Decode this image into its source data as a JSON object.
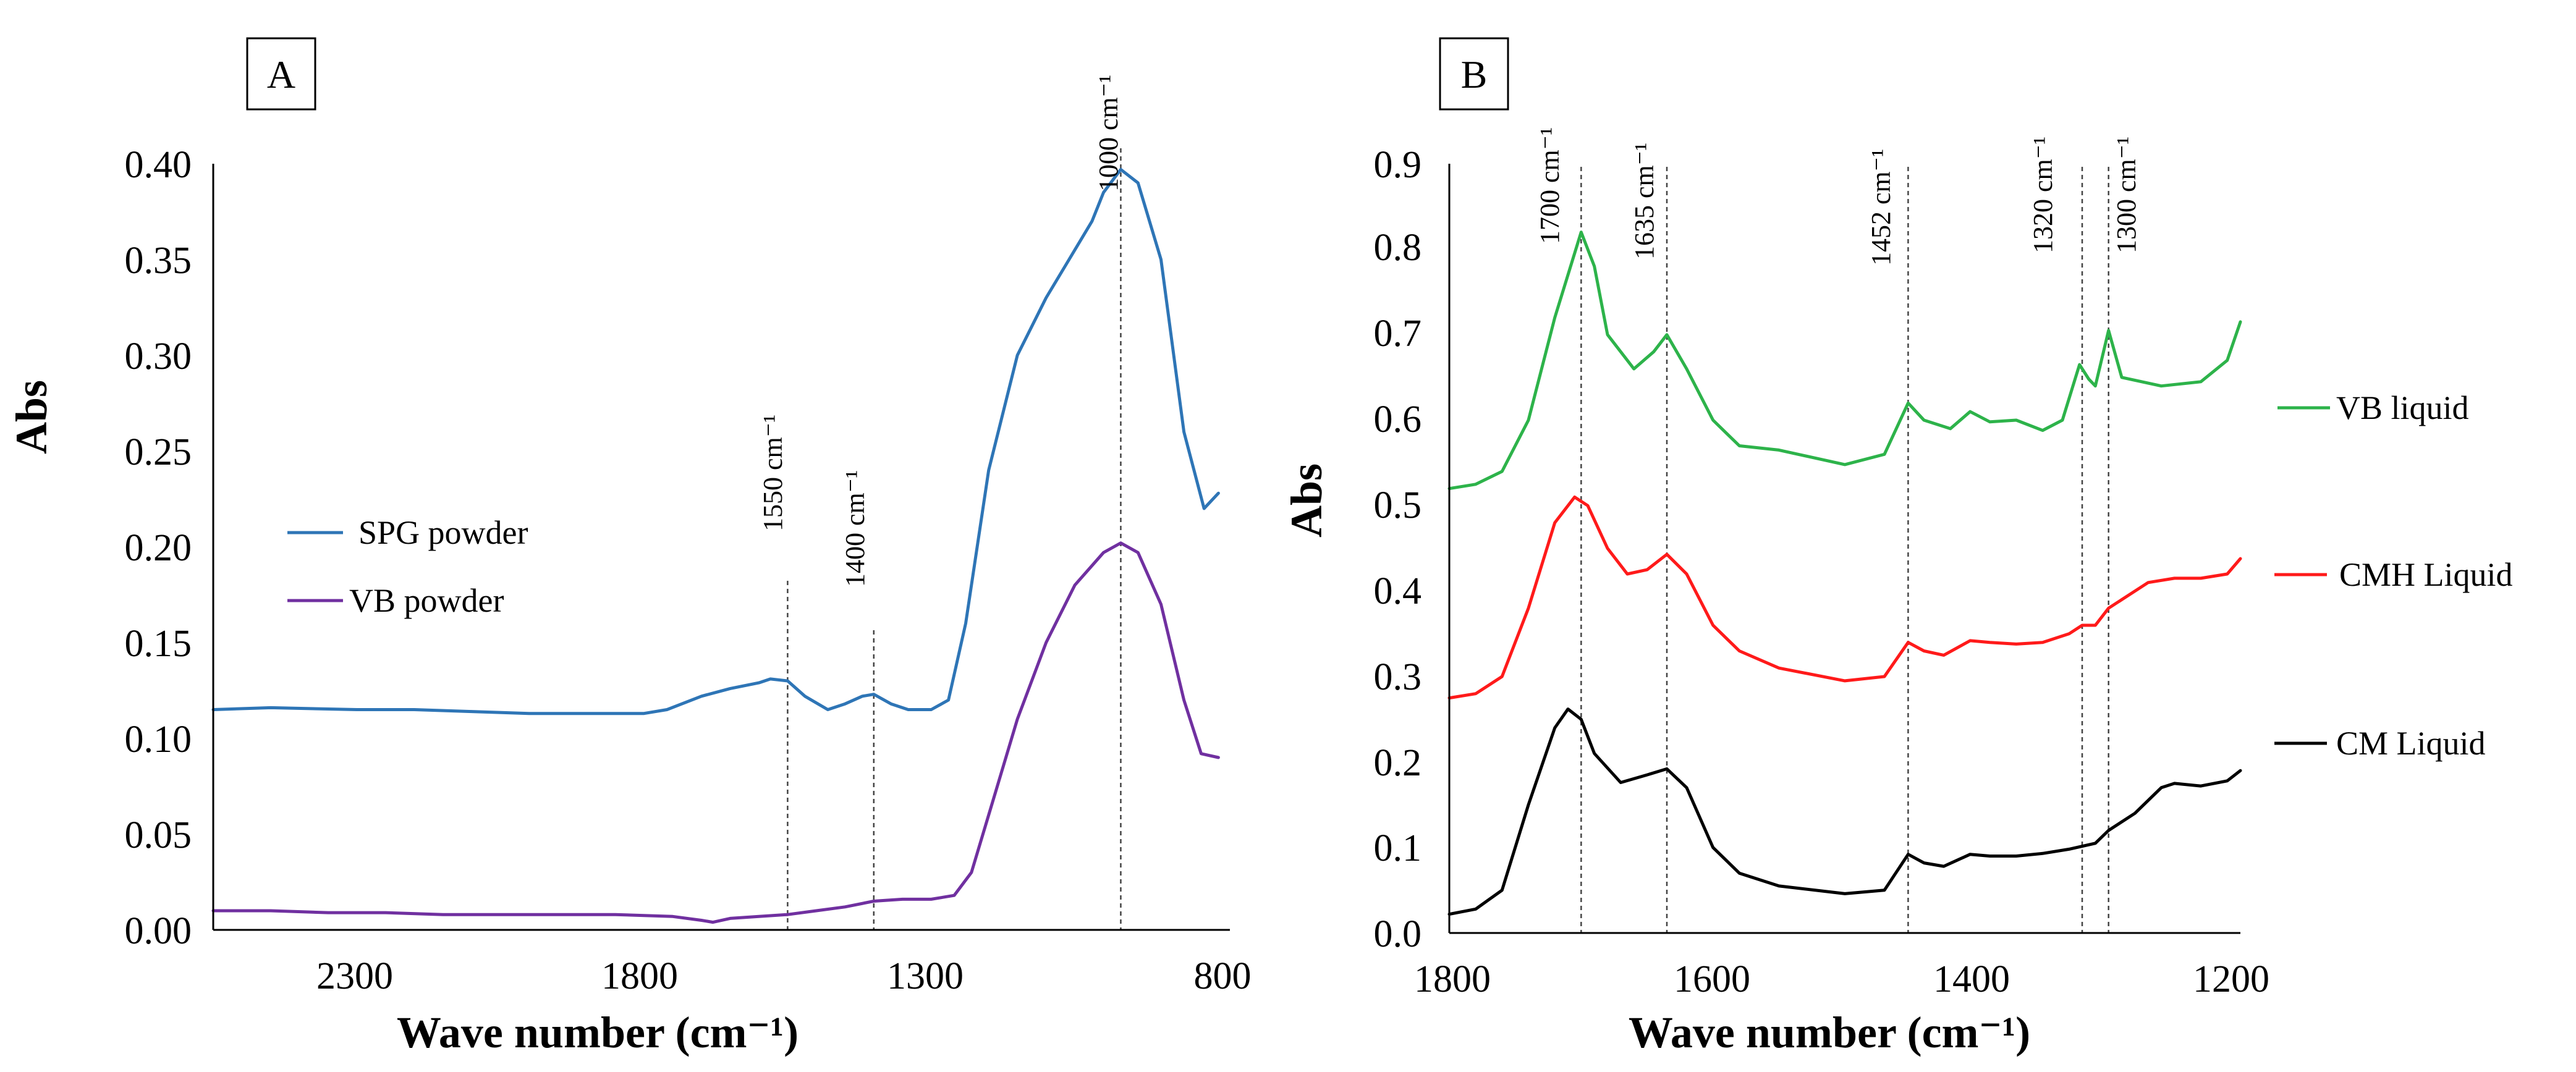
{
  "chart_data": [
    {
      "type": "line",
      "panel_label": "A",
      "title": "",
      "xlabel": "Wave number (cm⁻¹)",
      "ylabel": "Abs",
      "xlim": [
        2550,
        780
      ],
      "ylim": [
        0,
        0.4
      ],
      "x_ticks": [
        "2300",
        "1800",
        "1300",
        "800"
      ],
      "y_ticks": [
        "0.00",
        "0.05",
        "0.10",
        "0.15",
        "0.20",
        "0.25",
        "0.30",
        "0.35",
        "0.40"
      ],
      "legend_position": "middle-left",
      "series": [
        {
          "name": "SPG powder",
          "color": "#2e75b6",
          "points": [
            [
              2550,
              0.115
            ],
            [
              2450,
              0.116
            ],
            [
              2300,
              0.115
            ],
            [
              2200,
              0.115
            ],
            [
              2100,
              0.114
            ],
            [
              2000,
              0.113
            ],
            [
              1900,
              0.113
            ],
            [
              1800,
              0.113
            ],
            [
              1760,
              0.115
            ],
            [
              1700,
              0.122
            ],
            [
              1650,
              0.126
            ],
            [
              1600,
              0.129
            ],
            [
              1580,
              0.131
            ],
            [
              1550,
              0.13
            ],
            [
              1520,
              0.122
            ],
            [
              1480,
              0.115
            ],
            [
              1450,
              0.118
            ],
            [
              1420,
              0.122
            ],
            [
              1400,
              0.123
            ],
            [
              1370,
              0.118
            ],
            [
              1340,
              0.115
            ],
            [
              1300,
              0.115
            ],
            [
              1270,
              0.12
            ],
            [
              1240,
              0.16
            ],
            [
              1200,
              0.24
            ],
            [
              1150,
              0.3
            ],
            [
              1100,
              0.33
            ],
            [
              1060,
              0.35
            ],
            [
              1020,
              0.37
            ],
            [
              1000,
              0.385
            ],
            [
              970,
              0.397
            ],
            [
              940,
              0.39
            ],
            [
              900,
              0.35
            ],
            [
              860,
              0.26
            ],
            [
              825,
              0.22
            ],
            [
              800,
              0.228
            ]
          ]
        },
        {
          "name": "VB powder",
          "color": "#7030a0",
          "points": [
            [
              2550,
              0.01
            ],
            [
              2450,
              0.01
            ],
            [
              2350,
              0.009
            ],
            [
              2250,
              0.009
            ],
            [
              2150,
              0.008
            ],
            [
              2000,
              0.008
            ],
            [
              1850,
              0.008
            ],
            [
              1750,
              0.007
            ],
            [
              1700,
              0.005
            ],
            [
              1680,
              0.004
            ],
            [
              1650,
              0.006
            ],
            [
              1600,
              0.007
            ],
            [
              1550,
              0.008
            ],
            [
              1500,
              0.01
            ],
            [
              1450,
              0.012
            ],
            [
              1400,
              0.015
            ],
            [
              1350,
              0.016
            ],
            [
              1300,
              0.016
            ],
            [
              1260,
              0.018
            ],
            [
              1230,
              0.03
            ],
            [
              1190,
              0.07
            ],
            [
              1150,
              0.11
            ],
            [
              1100,
              0.15
            ],
            [
              1050,
              0.18
            ],
            [
              1000,
              0.197
            ],
            [
              970,
              0.202
            ],
            [
              940,
              0.197
            ],
            [
              900,
              0.17
            ],
            [
              860,
              0.12
            ],
            [
              830,
              0.092
            ],
            [
              800,
              0.09
            ]
          ]
        }
      ],
      "annotations": [
        {
          "label": "1000 cm⁻¹",
          "x": 970
        },
        {
          "label": "1550 cm⁻¹",
          "x": 1550
        },
        {
          "label": "1400 cm⁻¹",
          "x": 1400
        }
      ]
    },
    {
      "type": "line",
      "panel_label": "B",
      "title": "",
      "xlabel": "Wave number (cm⁻¹)",
      "ylabel": "Abs",
      "xlim": [
        1800,
        1200
      ],
      "ylim": [
        0,
        0.9
      ],
      "x_ticks": [
        "1800",
        "1600",
        "1400",
        "1200"
      ],
      "y_ticks": [
        "0.0",
        "0.1",
        "0.2",
        "0.3",
        "0.4",
        "0.5",
        "0.6",
        "0.7",
        "0.8",
        "0.9"
      ],
      "legend_position": "right",
      "series": [
        {
          "name": "VB liquid",
          "color": "#2db34a",
          "points": [
            [
              1800,
              0.52
            ],
            [
              1780,
              0.525
            ],
            [
              1760,
              0.54
            ],
            [
              1740,
              0.6
            ],
            [
              1720,
              0.72
            ],
            [
              1700,
              0.82
            ],
            [
              1690,
              0.78
            ],
            [
              1680,
              0.7
            ],
            [
              1660,
              0.66
            ],
            [
              1645,
              0.68
            ],
            [
              1635,
              0.7
            ],
            [
              1620,
              0.66
            ],
            [
              1600,
              0.6
            ],
            [
              1580,
              0.57
            ],
            [
              1550,
              0.565
            ],
            [
              1500,
              0.548
            ],
            [
              1470,
              0.56
            ],
            [
              1452,
              0.62
            ],
            [
              1440,
              0.6
            ],
            [
              1420,
              0.59
            ],
            [
              1405,
              0.61
            ],
            [
              1390,
              0.598
            ],
            [
              1370,
              0.6
            ],
            [
              1350,
              0.588
            ],
            [
              1335,
              0.6
            ],
            [
              1322,
              0.665
            ],
            [
              1315,
              0.648
            ],
            [
              1310,
              0.64
            ],
            [
              1300,
              0.705
            ],
            [
              1290,
              0.65
            ],
            [
              1260,
              0.64
            ],
            [
              1230,
              0.645
            ],
            [
              1210,
              0.67
            ],
            [
              1200,
              0.715
            ]
          ]
        },
        {
          "name": "CMH Liquid",
          "color": "#ff1a1a",
          "points": [
            [
              1800,
              0.275
            ],
            [
              1780,
              0.28
            ],
            [
              1760,
              0.3
            ],
            [
              1740,
              0.38
            ],
            [
              1720,
              0.48
            ],
            [
              1705,
              0.51
            ],
            [
              1695,
              0.5
            ],
            [
              1680,
              0.45
            ],
            [
              1665,
              0.42
            ],
            [
              1650,
              0.425
            ],
            [
              1635,
              0.443
            ],
            [
              1620,
              0.42
            ],
            [
              1600,
              0.36
            ],
            [
              1580,
              0.33
            ],
            [
              1550,
              0.31
            ],
            [
              1500,
              0.295
            ],
            [
              1470,
              0.3
            ],
            [
              1452,
              0.34
            ],
            [
              1440,
              0.33
            ],
            [
              1425,
              0.325
            ],
            [
              1405,
              0.342
            ],
            [
              1390,
              0.34
            ],
            [
              1370,
              0.338
            ],
            [
              1350,
              0.34
            ],
            [
              1330,
              0.35
            ],
            [
              1320,
              0.36
            ],
            [
              1310,
              0.36
            ],
            [
              1300,
              0.38
            ],
            [
              1290,
              0.39
            ],
            [
              1270,
              0.41
            ],
            [
              1250,
              0.415
            ],
            [
              1230,
              0.415
            ],
            [
              1210,
              0.42
            ],
            [
              1200,
              0.438
            ]
          ]
        },
        {
          "name": "CM Liquid",
          "color": "#000000",
          "points": [
            [
              1800,
              0.022
            ],
            [
              1780,
              0.028
            ],
            [
              1760,
              0.05
            ],
            [
              1740,
              0.15
            ],
            [
              1720,
              0.24
            ],
            [
              1710,
              0.262
            ],
            [
              1700,
              0.25
            ],
            [
              1690,
              0.21
            ],
            [
              1670,
              0.176
            ],
            [
              1650,
              0.185
            ],
            [
              1635,
              0.192
            ],
            [
              1620,
              0.17
            ],
            [
              1600,
              0.1
            ],
            [
              1580,
              0.07
            ],
            [
              1550,
              0.055
            ],
            [
              1500,
              0.046
            ],
            [
              1470,
              0.05
            ],
            [
              1452,
              0.092
            ],
            [
              1440,
              0.082
            ],
            [
              1425,
              0.078
            ],
            [
              1405,
              0.092
            ],
            [
              1390,
              0.09
            ],
            [
              1370,
              0.09
            ],
            [
              1350,
              0.093
            ],
            [
              1330,
              0.098
            ],
            [
              1310,
              0.105
            ],
            [
              1300,
              0.12
            ],
            [
              1280,
              0.14
            ],
            [
              1260,
              0.17
            ],
            [
              1250,
              0.175
            ],
            [
              1230,
              0.172
            ],
            [
              1210,
              0.178
            ],
            [
              1200,
              0.19
            ]
          ]
        }
      ],
      "annotations": [
        {
          "label": "1700 cm⁻¹",
          "x": 1700
        },
        {
          "label": "1635 cm⁻¹",
          "x": 1635
        },
        {
          "label": "1452 cm⁻¹",
          "x": 1452
        },
        {
          "label": "1320 cm⁻¹",
          "x": 1320
        },
        {
          "label": "1300 cm⁻¹",
          "x": 1300
        }
      ]
    }
  ]
}
